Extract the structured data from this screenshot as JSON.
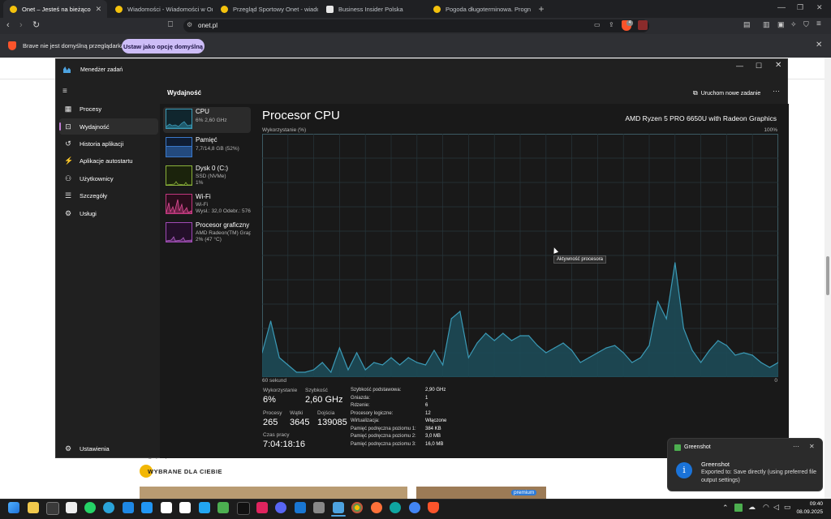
{
  "browser": {
    "tabs": [
      {
        "title": "Onet – Jesteś na bieżąco",
        "active": true
      },
      {
        "title": "Wiadomości - Wiadomości w Onet"
      },
      {
        "title": "Przegląd Sportowy Onet - wiadomości"
      },
      {
        "title": "Business Insider Polska"
      },
      {
        "title": "Pogoda długoterminowa. Prognoza"
      }
    ],
    "url": "onet.pl",
    "infobar": {
      "message": "Brave nie jest domyślną przeglądarką",
      "button": "Ustaw jako opcję domyślną"
    },
    "shield_badge": "4"
  },
  "webpage": {
    "section_title": "WYBRANE DLA CIEBIE",
    "badge": "premium",
    "partial_text": "…g (…) …"
  },
  "task_manager": {
    "app_title": "Menedżer zadań",
    "page_title": "Wydajność",
    "run_task_label": "Uruchom nowe zadanie",
    "nav": [
      {
        "label": "Procesy",
        "icon": "processes-icon"
      },
      {
        "label": "Wydajność",
        "icon": "performance-icon",
        "selected": true
      },
      {
        "label": "Historia aplikacji",
        "icon": "history-icon"
      },
      {
        "label": "Aplikacje autostartu",
        "icon": "startup-icon"
      },
      {
        "label": "Użytkownicy",
        "icon": "users-icon"
      },
      {
        "label": "Szczegóły",
        "icon": "details-icon"
      },
      {
        "label": "Usługi",
        "icon": "services-icon"
      }
    ],
    "settings_label": "Ustawienia",
    "devices": [
      {
        "name": "CPU",
        "sub1": "6% 2,60 GHz",
        "sub2": "",
        "color": "#3b9ab6",
        "selected": true
      },
      {
        "name": "Pamięć",
        "sub1": "7,7/14,8 GB (52%)",
        "sub2": "",
        "color": "#3a78c9"
      },
      {
        "name": "Dysk 0 (C:)",
        "sub1": "SSD (NVMe)",
        "sub2": "1%",
        "color": "#8bb23a"
      },
      {
        "name": "Wi-Fi",
        "sub1": "Wi-Fi",
        "sub2": "Wysł.: 32,0 Odebr.: 576 K",
        "color": "#c2377e"
      },
      {
        "name": "Procesor graficzny",
        "sub1": "AMD Radeon(TM) Graphics",
        "sub2": "2% (47 °C)",
        "color": "#a04ab5"
      }
    ],
    "detail": {
      "title": "Procesor CPU",
      "model": "AMD Ryzen 5 PRO 6650U with Radeon Graphics",
      "usage_label": "Wykorzystanie (%)",
      "max_label": "100%",
      "time_label": "60 sekund",
      "min_label": "0",
      "tooltip": "Aktywność procesora",
      "stats": {
        "usage_label": "Wykorzystanie",
        "usage": "6%",
        "speed_label": "Szybkość",
        "speed": "2,60 GHz",
        "processes_label": "Procesy",
        "processes": "265",
        "threads_label": "Wątki",
        "threads": "3645",
        "handles_label": "Dojścia",
        "handles": "139085",
        "uptime_label": "Czas pracy",
        "uptime": "7:04:18:16"
      },
      "specs": [
        {
          "k": "Szybkość podstawowa:",
          "v": "2,90 GHz"
        },
        {
          "k": "Gniazda:",
          "v": "1"
        },
        {
          "k": "Rdzenie:",
          "v": "6"
        },
        {
          "k": "Procesory logiczne:",
          "v": "12"
        },
        {
          "k": "Wirtualizacja:",
          "v": "Włączone"
        },
        {
          "k": "Pamięć podręczna poziomu 1:",
          "v": "384 KB"
        },
        {
          "k": "Pamięć podręczna poziomu 2:",
          "v": "3,0 MB"
        },
        {
          "k": "Pamięć podręczna poziomu 3:",
          "v": "16,0 MB"
        }
      ]
    }
  },
  "chart_data": {
    "type": "area",
    "title": "Procesor CPU",
    "ylabel": "Wykorzystanie (%)",
    "xlabel": "60 sekund",
    "ylim": [
      0,
      100
    ],
    "grid": true,
    "x": [
      60,
      59,
      58,
      57,
      56,
      55,
      54,
      53,
      52,
      51,
      50,
      49,
      48,
      47,
      46,
      45,
      44,
      43,
      42,
      41,
      40,
      39,
      38,
      37,
      36,
      35,
      34,
      33,
      32,
      31,
      30,
      29,
      28,
      27,
      26,
      25,
      24,
      23,
      22,
      21,
      20,
      19,
      18,
      17,
      16,
      15,
      14,
      13,
      12,
      11,
      10,
      9,
      8,
      7,
      6,
      5,
      4,
      3,
      2,
      1,
      0
    ],
    "series": [
      {
        "values": [
          10,
          23,
          8,
          5,
          2,
          2,
          3,
          6,
          2,
          12,
          3,
          10,
          3,
          6,
          5,
          8,
          5,
          8,
          6,
          5,
          11,
          5,
          24,
          27,
          8,
          14,
          18,
          15,
          18,
          15,
          17,
          17,
          13,
          10,
          12,
          14,
          11,
          6,
          8,
          10,
          12,
          13,
          10,
          6,
          8,
          13,
          31,
          24,
          47,
          20,
          11,
          6,
          11,
          15,
          13,
          9,
          10,
          9,
          6,
          4,
          6
        ]
      }
    ],
    "color": "#3b9ab6"
  },
  "toast": {
    "app": "Greenshot",
    "title": "Greenshot",
    "message": "Exported to: Save directly (using preferred file output settings)"
  },
  "taskbar": {
    "time": "09:40",
    "date": "08.09.2025"
  }
}
